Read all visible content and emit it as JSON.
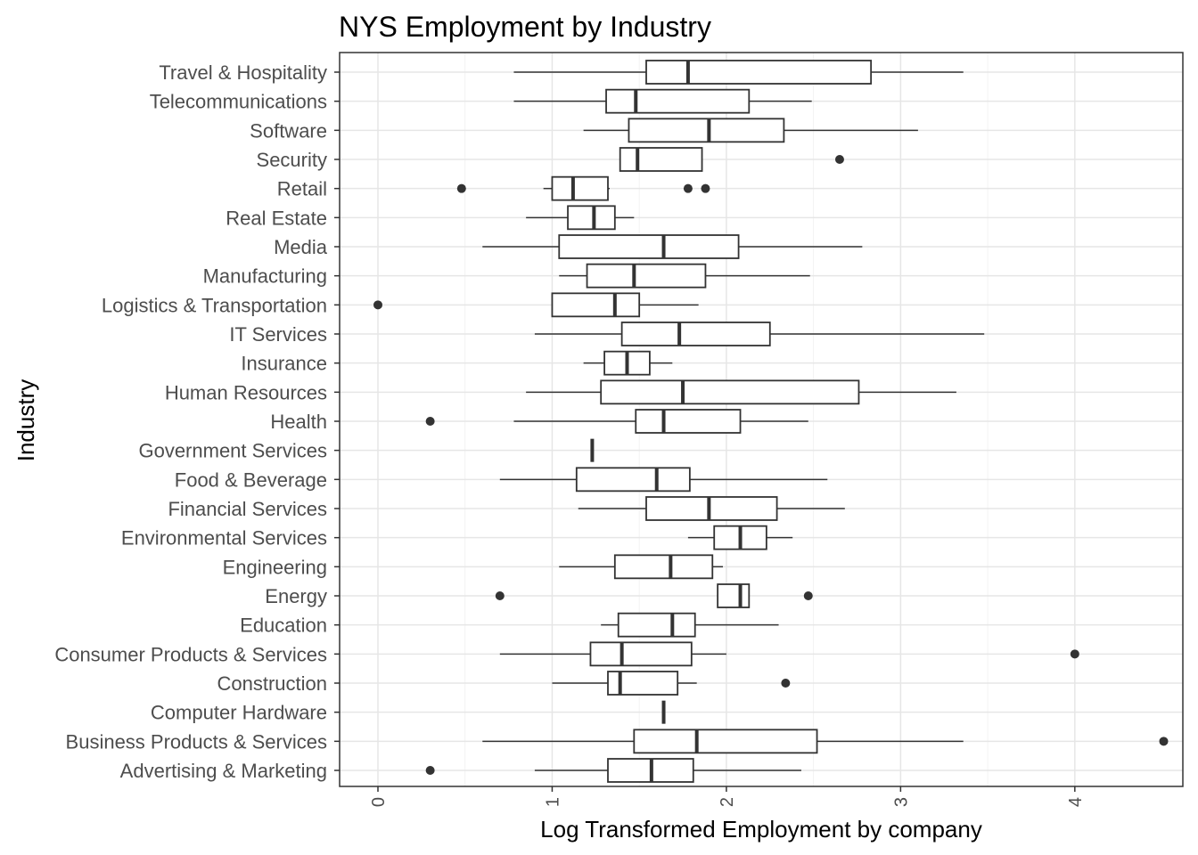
{
  "chart_data": {
    "type": "boxplot",
    "title": "NYS Employment by Industry",
    "xlabel": "Log Transformed Employment by company",
    "ylabel": "Industry",
    "xlim": [
      -0.22,
      4.62
    ],
    "x_ticks": [
      0,
      1,
      2,
      3,
      4
    ],
    "x_tick_labels": [
      "0",
      "1",
      "2",
      "3",
      "4"
    ],
    "grid": true,
    "categories": [
      "Travel & Hospitality",
      "Telecommunications",
      "Software",
      "Security",
      "Retail",
      "Real Estate",
      "Media",
      "Manufacturing",
      "Logistics & Transportation",
      "IT Services",
      "Insurance",
      "Human Resources",
      "Health",
      "Government Services",
      "Food & Beverage",
      "Financial Services",
      "Environmental Services",
      "Engineering",
      "Energy",
      "Education",
      "Consumer Products & Services",
      "Construction",
      "Computer Hardware",
      "Business Products & Services",
      "Advertising & Marketing"
    ],
    "boxes": [
      {
        "min": 0.78,
        "q1": 1.54,
        "median": 1.78,
        "q3": 2.83,
        "max": 3.36,
        "outliers": []
      },
      {
        "min": 0.78,
        "q1": 1.31,
        "median": 1.48,
        "q3": 2.13,
        "max": 2.49,
        "outliers": []
      },
      {
        "min": 1.18,
        "q1": 1.44,
        "median": 1.9,
        "q3": 2.33,
        "max": 3.1,
        "outliers": []
      },
      {
        "min": 1.39,
        "q1": 1.39,
        "median": 1.49,
        "q3": 1.86,
        "max": 1.86,
        "outliers": [
          2.65
        ]
      },
      {
        "min": 0.95,
        "q1": 1.0,
        "median": 1.12,
        "q3": 1.32,
        "max": 1.33,
        "outliers": [
          0.48,
          1.78,
          1.88
        ]
      },
      {
        "min": 0.85,
        "q1": 1.09,
        "median": 1.24,
        "q3": 1.36,
        "max": 1.47,
        "outliers": []
      },
      {
        "min": 0.6,
        "q1": 1.04,
        "median": 1.64,
        "q3": 2.07,
        "max": 2.78,
        "outliers": []
      },
      {
        "min": 1.04,
        "q1": 1.2,
        "median": 1.47,
        "q3": 1.88,
        "max": 2.48,
        "outliers": []
      },
      {
        "min": 1.0,
        "q1": 1.0,
        "median": 1.36,
        "q3": 1.5,
        "max": 1.84,
        "outliers": [
          0.0
        ]
      },
      {
        "min": 0.9,
        "q1": 1.4,
        "median": 1.73,
        "q3": 2.25,
        "max": 3.48,
        "outliers": []
      },
      {
        "min": 1.18,
        "q1": 1.3,
        "median": 1.43,
        "q3": 1.56,
        "max": 1.69,
        "outliers": []
      },
      {
        "min": 0.85,
        "q1": 1.28,
        "median": 1.75,
        "q3": 2.76,
        "max": 3.32,
        "outliers": []
      },
      {
        "min": 0.78,
        "q1": 1.48,
        "median": 1.64,
        "q3": 2.08,
        "max": 2.47,
        "outliers": [
          0.3
        ]
      },
      {
        "min": 1.23,
        "q1": 1.23,
        "median": 1.23,
        "q3": 1.23,
        "max": 1.23,
        "outliers": []
      },
      {
        "min": 0.7,
        "q1": 1.14,
        "median": 1.6,
        "q3": 1.79,
        "max": 2.58,
        "outliers": []
      },
      {
        "min": 1.15,
        "q1": 1.54,
        "median": 1.9,
        "q3": 2.29,
        "max": 2.68,
        "outliers": []
      },
      {
        "min": 1.78,
        "q1": 1.93,
        "median": 2.08,
        "q3": 2.23,
        "max": 2.38,
        "outliers": []
      },
      {
        "min": 1.04,
        "q1": 1.36,
        "median": 1.68,
        "q3": 1.92,
        "max": 1.98,
        "outliers": []
      },
      {
        "min": 1.95,
        "q1": 1.95,
        "median": 2.08,
        "q3": 2.13,
        "max": 2.13,
        "outliers": [
          0.7,
          2.47
        ]
      },
      {
        "min": 1.28,
        "q1": 1.38,
        "median": 1.69,
        "q3": 1.82,
        "max": 2.3,
        "outliers": []
      },
      {
        "min": 0.7,
        "q1": 1.22,
        "median": 1.4,
        "q3": 1.8,
        "max": 2.0,
        "outliers": [
          4.0
        ]
      },
      {
        "min": 1.0,
        "q1": 1.32,
        "median": 1.39,
        "q3": 1.72,
        "max": 1.83,
        "outliers": [
          2.34
        ]
      },
      {
        "min": 1.64,
        "q1": 1.64,
        "median": 1.64,
        "q3": 1.64,
        "max": 1.64,
        "outliers": []
      },
      {
        "min": 0.6,
        "q1": 1.47,
        "median": 1.83,
        "q3": 2.52,
        "max": 3.36,
        "outliers": [
          4.51
        ]
      },
      {
        "min": 0.9,
        "q1": 1.32,
        "median": 1.57,
        "q3": 1.81,
        "max": 2.43,
        "outliers": [
          0.3
        ]
      }
    ]
  }
}
